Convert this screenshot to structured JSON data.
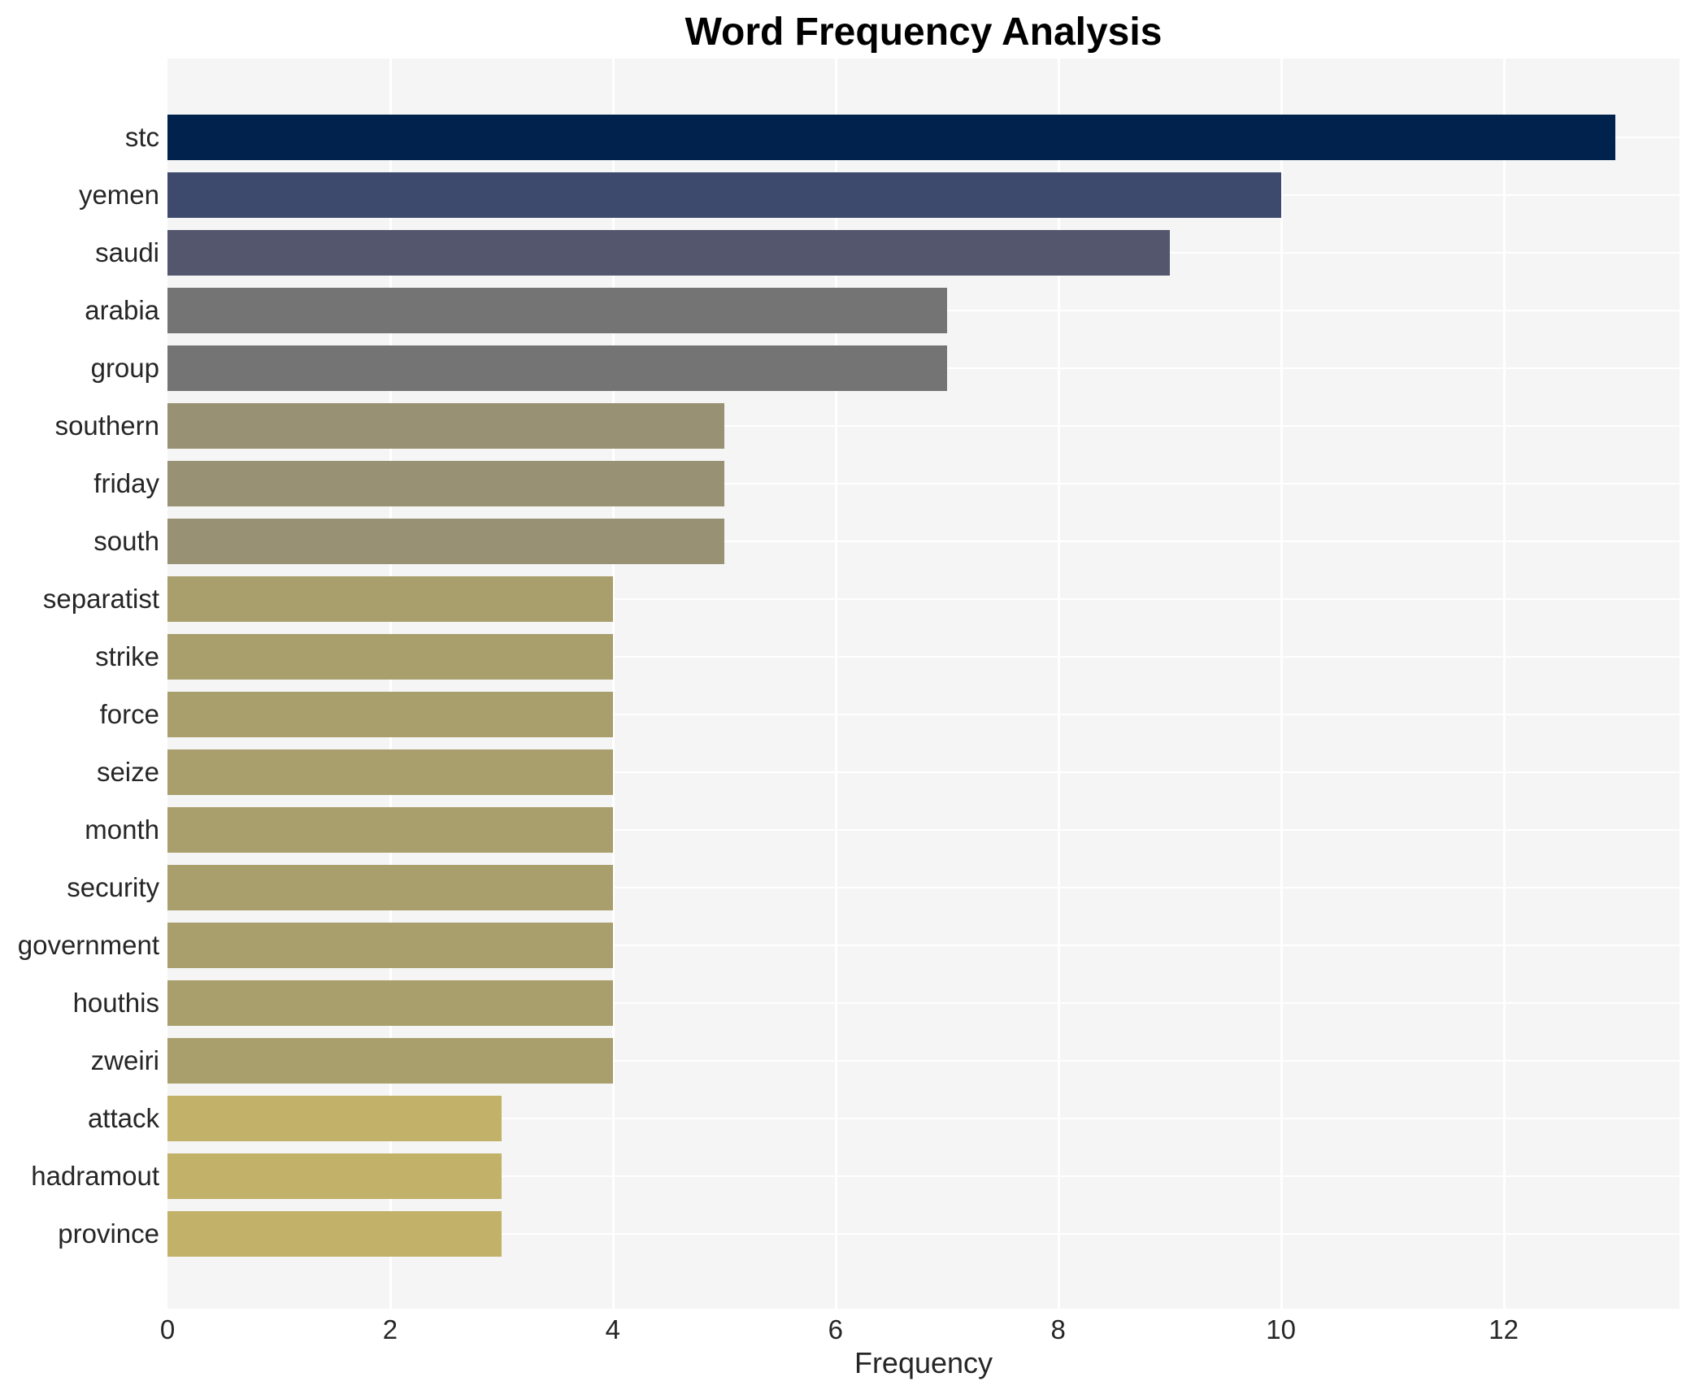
{
  "chart_data": {
    "type": "bar",
    "orientation": "horizontal",
    "title": "Word Frequency Analysis",
    "xlabel": "Frequency",
    "ylabel": "",
    "categories": [
      "stc",
      "yemen",
      "saudi",
      "arabia",
      "group",
      "southern",
      "friday",
      "south",
      "separatist",
      "strike",
      "force",
      "seize",
      "month",
      "security",
      "government",
      "houthis",
      "zweiri",
      "attack",
      "hadramout",
      "province"
    ],
    "values": [
      13,
      10,
      9,
      7,
      7,
      5,
      5,
      5,
      4,
      4,
      4,
      4,
      4,
      4,
      4,
      4,
      4,
      3,
      3,
      3
    ],
    "bar_colors": [
      "#02224e",
      "#3d4a6e",
      "#53566c",
      "#747474",
      "#747474",
      "#989173",
      "#989173",
      "#989173",
      "#a99f6c",
      "#a99f6c",
      "#a99f6c",
      "#a99f6c",
      "#a99f6c",
      "#a99f6c",
      "#a99f6c",
      "#a99f6c",
      "#a99f6c",
      "#c1b169",
      "#c1b169",
      "#c1b169"
    ],
    "xticks": [
      0,
      2,
      4,
      6,
      8,
      10,
      12
    ],
    "xlim": [
      0,
      13.58
    ],
    "grid": true,
    "legend": false,
    "panel_bg": "#f5f5f6",
    "grid_color": "#ffffff",
    "text_color": "#262626",
    "title_color": "#000000"
  }
}
